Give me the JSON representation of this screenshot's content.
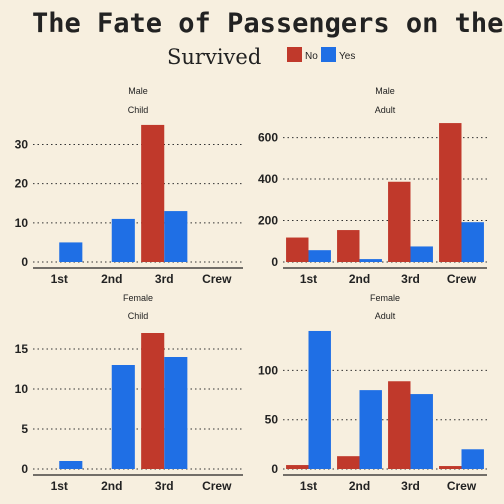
{
  "title": "The Fate of Passengers on the Titanic",
  "legend": {
    "title": "Survived",
    "items": [
      {
        "label": "No",
        "color": "#c0392b"
      },
      {
        "label": "Yes",
        "color": "#1f6fe5"
      }
    ]
  },
  "chart_data": {
    "type": "bar",
    "categories": [
      "1st",
      "2nd",
      "3rd",
      "Crew"
    ],
    "series_names": [
      "No",
      "Yes"
    ],
    "panels": [
      {
        "sex": "Male",
        "age": "Child",
        "ylim": [
          0,
          36
        ],
        "yticks": [
          0,
          10,
          20,
          30
        ],
        "series": [
          {
            "name": "No",
            "values": [
              0,
              0,
              35,
              0
            ]
          },
          {
            "name": "Yes",
            "values": [
              5,
              11,
              13,
              0
            ]
          }
        ]
      },
      {
        "sex": "Male",
        "age": "Adult",
        "ylim": [
          0,
          680
        ],
        "yticks": [
          0,
          200,
          400,
          600
        ],
        "series": [
          {
            "name": "No",
            "values": [
              118,
              154,
              387,
              670
            ]
          },
          {
            "name": "Yes",
            "values": [
              57,
              14,
              75,
              192
            ]
          }
        ]
      },
      {
        "sex": "Female",
        "age": "Child",
        "ylim": [
          0,
          17.5
        ],
        "yticks": [
          0,
          5,
          10,
          15
        ],
        "series": [
          {
            "name": "No",
            "values": [
              0,
              0,
              17,
              0
            ]
          },
          {
            "name": "Yes",
            "values": [
              1,
              13,
              14,
              0
            ]
          }
        ]
      },
      {
        "sex": "Female",
        "age": "Adult",
        "ylim": [
          0,
          142
        ],
        "yticks": [
          0,
          50,
          100
        ],
        "series": [
          {
            "name": "No",
            "values": [
              4,
              13,
              89,
              3
            ]
          },
          {
            "name": "Yes",
            "values": [
              140,
              80,
              76,
              20
            ]
          }
        ]
      }
    ]
  }
}
